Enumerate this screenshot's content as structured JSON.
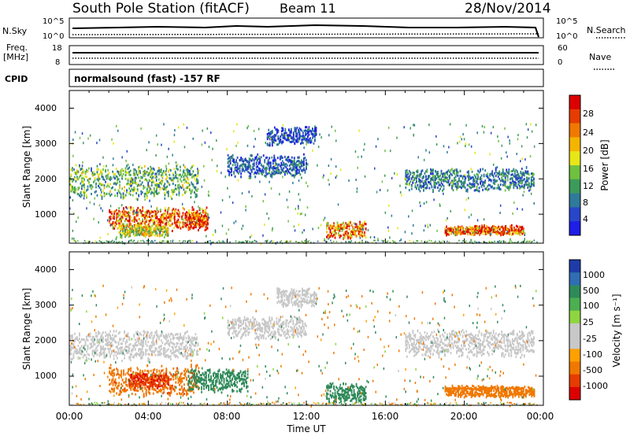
{
  "header": {
    "station": "South Pole Station (fitACF)",
    "beam": "Beam 11",
    "date": "28/Nov/2014"
  },
  "strips": {
    "nsky_label": "N.Sky",
    "nsky_ticks": [
      "10^5",
      "10^0"
    ],
    "nsearch_label": "N.Search",
    "nsearch_ticks": [
      "10^5",
      "10^0"
    ],
    "freq_label": "Freq.",
    "freq_unit": "[MHz]",
    "freq_ticks": [
      "18",
      "8"
    ],
    "nave_label": "Nave",
    "nave_ticks": [
      "60",
      "0"
    ],
    "cpid_label": "CPID",
    "cpid_value": "normalsound (fast) -157 RF"
  },
  "colors": {
    "power_scale": [
      "#1e1ee6",
      "#2846c8",
      "#2f7a9a",
      "#3c9a5a",
      "#70c040",
      "#e6e619",
      "#f5b400",
      "#f07800",
      "#e63c00",
      "#dc0000"
    ],
    "velocity_scale": [
      "#1e3ca8",
      "#2f6eb4",
      "#2f8a5a",
      "#4caf50",
      "#8ed640",
      "#c8c8c8",
      "#c8c8c8",
      "#ffa000",
      "#f07800",
      "#e63c00",
      "#dc0000"
    ]
  },
  "chart_data": [
    {
      "type": "heatmap",
      "panel": "power",
      "ylabel": "Slant Range [km]",
      "y_ticks": [
        "4000",
        "3000",
        "2000",
        "1000"
      ],
      "ylim": [
        180,
        4500
      ],
      "xlim": [
        "00:00",
        "24:00"
      ],
      "colorbar_label": "Power [dB]",
      "colorbar_ticks": [
        "28",
        "24",
        "20",
        "16",
        "12",
        "8",
        "4"
      ],
      "colorbar_range": [
        0,
        30
      ],
      "echo_bands": [
        {
          "start": "00:00",
          "end": "06:30",
          "range_low": 1500,
          "range_high": 2400,
          "value": 12
        },
        {
          "start": "02:00",
          "end": "07:00",
          "range_low": 600,
          "range_high": 1200,
          "value": 24
        },
        {
          "start": "02:30",
          "end": "05:00",
          "range_low": 400,
          "range_high": 700,
          "value": 16
        },
        {
          "start": "06:00",
          "end": "07:00",
          "range_low": 600,
          "range_high": 1100,
          "value": 26
        },
        {
          "start": "08:00",
          "end": "12:00",
          "range_low": 2100,
          "range_high": 2700,
          "value": 6
        },
        {
          "start": "10:00",
          "end": "12:30",
          "range_low": 3000,
          "range_high": 3500,
          "value": 5
        },
        {
          "start": "13:00",
          "end": "15:00",
          "range_low": 350,
          "range_high": 800,
          "value": 22
        },
        {
          "start": "17:00",
          "end": "23:30",
          "range_low": 1700,
          "range_high": 2300,
          "value": 8
        },
        {
          "start": "19:00",
          "end": "23:00",
          "range_low": 450,
          "range_high": 700,
          "value": 24
        }
      ]
    },
    {
      "type": "heatmap",
      "panel": "velocity",
      "ylabel": "Slant Range [km]",
      "y_ticks": [
        "4000",
        "3000",
        "2000",
        "1000"
      ],
      "ylim": [
        180,
        4500
      ],
      "xlim": [
        "00:00",
        "24:00"
      ],
      "xlabel": "Time UT",
      "x_ticks": [
        "00:00",
        "04:00",
        "08:00",
        "12:00",
        "16:00",
        "20:00",
        "00:00"
      ],
      "colorbar_label": "Velocity [m s⁻¹]",
      "colorbar_ticks": [
        "1000",
        "500",
        "100",
        "25",
        "-25",
        "-100",
        "-500",
        "-1000"
      ],
      "echo_bands": [
        {
          "start": "00:00",
          "end": "06:30",
          "range_low": 1500,
          "range_high": 2300,
          "value": 0
        },
        {
          "start": "02:00",
          "end": "06:30",
          "range_low": 500,
          "range_high": 1300,
          "value": -400
        },
        {
          "start": "03:00",
          "end": "05:00",
          "range_low": 700,
          "range_high": 1100,
          "value": -900
        },
        {
          "start": "06:00",
          "end": "09:00",
          "range_low": 600,
          "range_high": 1200,
          "value": 300
        },
        {
          "start": "08:00",
          "end": "12:00",
          "range_low": 2100,
          "range_high": 2700,
          "value": 0
        },
        {
          "start": "10:30",
          "end": "12:30",
          "range_low": 3000,
          "range_high": 3500,
          "value": 0
        },
        {
          "start": "13:00",
          "end": "15:00",
          "range_low": 300,
          "range_high": 800,
          "value": 300
        },
        {
          "start": "17:00",
          "end": "23:30",
          "range_low": 1600,
          "range_high": 2300,
          "value": 0
        },
        {
          "start": "19:00",
          "end": "23:30",
          "range_low": 450,
          "range_high": 750,
          "value": -300
        }
      ]
    }
  ]
}
